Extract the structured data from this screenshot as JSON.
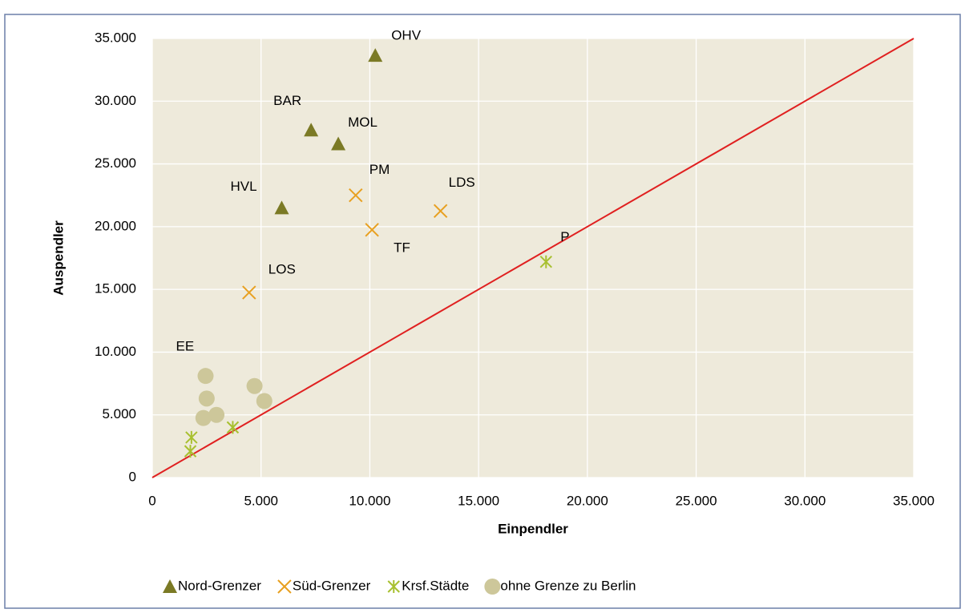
{
  "chart_data": {
    "type": "scatter",
    "xlabel": "Einpendler",
    "ylabel": "Auspendler",
    "xlim": [
      0,
      35000
    ],
    "ylim": [
      0,
      35000
    ],
    "xticks": [
      0,
      {
        "value": 5000,
        "label": "5.000"
      },
      {
        "value": 10000,
        "label": "10.000"
      },
      {
        "value": 15000,
        "label": "15.000"
      },
      {
        "value": 20000,
        "label": "20.000"
      },
      {
        "value": 25000,
        "label": "25.000"
      },
      {
        "value": 30000,
        "label": "30.000"
      },
      {
        "value": 35000,
        "label": "35.000"
      }
    ],
    "yticks": [
      0,
      {
        "value": 5000,
        "label": "5.000"
      },
      {
        "value": 10000,
        "label": "10.000"
      },
      {
        "value": 15000,
        "label": "15.000"
      },
      {
        "value": 20000,
        "label": "20.000"
      },
      {
        "value": 25000,
        "label": "25.000"
      },
      {
        "value": 30000,
        "label": "30.000"
      },
      {
        "value": 35000,
        "label": "35.000"
      }
    ],
    "grid": true,
    "legend": "bottom",
    "reference_line": {
      "x": [
        0,
        35000
      ],
      "y": [
        0,
        35000
      ],
      "color": "#e02020"
    },
    "series": [
      {
        "name": "Nord-Grenzer",
        "marker": "triangle",
        "color": "#7b7a25",
        "x": [
          10250,
          7300,
          8550,
          5950
        ],
        "values": [
          33650,
          27700,
          26600,
          21500
        ],
        "point_labels": [
          "OHV",
          "BAR",
          "MOL",
          "HVL"
        ]
      },
      {
        "name": "Süd-Grenzer",
        "marker": "x",
        "color": "#e8a020",
        "x": [
          9350,
          13250,
          10100,
          4450
        ],
        "values": [
          22500,
          21250,
          19750,
          14750
        ],
        "point_labels": [
          "PM",
          "LDS",
          "TF",
          "LOS"
        ]
      },
      {
        "name": "Krsf.Städte",
        "marker": "asterisk",
        "color": "#a8c030",
        "x": [
          18100,
          3700,
          1800,
          1750
        ],
        "values": [
          17200,
          4000,
          3200,
          2100
        ],
        "point_labels": [
          "P",
          null,
          null,
          null
        ]
      },
      {
        "name": "ohne Grenze zu Berlin",
        "marker": "circle",
        "color": "#cdc79a",
        "x": [
          2450,
          2500,
          2350,
          2950,
          4700,
          5150
        ],
        "values": [
          8100,
          6300,
          4750,
          5000,
          7300,
          6100
        ],
        "point_labels": [
          "EE",
          null,
          null,
          null,
          null,
          null
        ]
      }
    ]
  }
}
